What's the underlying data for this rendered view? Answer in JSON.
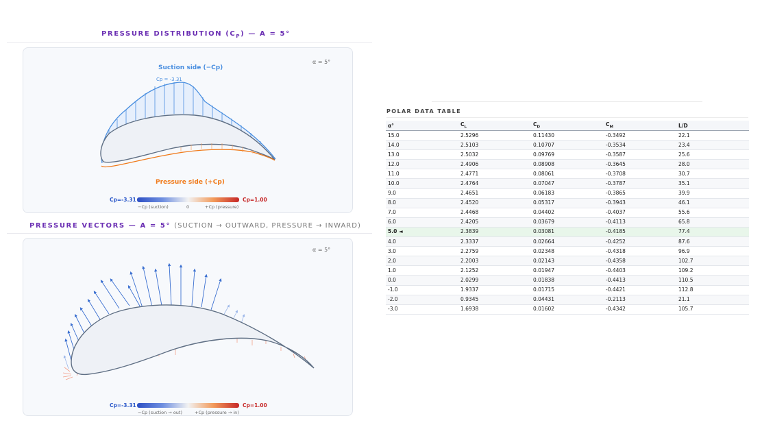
{
  "cp_section": {
    "title": "PRESSURE DISTRIBUTION (C",
    "title_sub": "P",
    "title_end": ") — A = 5°",
    "alpha_tag": "α = 5°",
    "suction_label": "Suction side (−Cp)",
    "pressure_label": "Pressure side (+Cp)",
    "cp_min_label": "Cp = -3.31",
    "colorbar": {
      "left": "Cp=-3.31",
      "right": "Cp=1.00",
      "tick_left": "−Cp (suction)",
      "tick_mid": "0",
      "tick_right": "+Cp (pressure)"
    }
  },
  "vector_section": {
    "title": "PRESSURE VECTORS — A = 5°",
    "subtitle": "(SUCTION → OUTWARD, PRESSURE → INWARD)",
    "alpha_tag": "α = 5°",
    "colorbar": {
      "left": "Cp=-3.31",
      "right": "Cp=1.00",
      "tick_left": "−Cp (suction → out)",
      "tick_right": "+Cp (pressure → in)"
    }
  },
  "colors": {
    "accent": "#6b2fb3",
    "suction": "#4a8fe0",
    "pressure": "#f07a1a",
    "highlight_row": "#e8f6ea"
  },
  "polar_table": {
    "title": "POLAR DATA TABLE",
    "headers": [
      {
        "main": "α°",
        "sub": ""
      },
      {
        "main": "C",
        "sub": "L"
      },
      {
        "main": "C",
        "sub": "D"
      },
      {
        "main": "C",
        "sub": "M"
      },
      {
        "main": "L/D",
        "sub": ""
      }
    ],
    "current_alpha": "5.0",
    "current_marker": "◄",
    "rows": [
      [
        "15.0",
        "2.5296",
        "0.11430",
        "-0.3492",
        "22.1"
      ],
      [
        "14.0",
        "2.5103",
        "0.10707",
        "-0.3534",
        "23.4"
      ],
      [
        "13.0",
        "2.5032",
        "0.09769",
        "-0.3587",
        "25.6"
      ],
      [
        "12.0",
        "2.4906",
        "0.08908",
        "-0.3645",
        "28.0"
      ],
      [
        "11.0",
        "2.4771",
        "0.08061",
        "-0.3708",
        "30.7"
      ],
      [
        "10.0",
        "2.4764",
        "0.07047",
        "-0.3787",
        "35.1"
      ],
      [
        "9.0",
        "2.4651",
        "0.06183",
        "-0.3865",
        "39.9"
      ],
      [
        "8.0",
        "2.4520",
        "0.05317",
        "-0.3943",
        "46.1"
      ],
      [
        "7.0",
        "2.4468",
        "0.04402",
        "-0.4037",
        "55.6"
      ],
      [
        "6.0",
        "2.4205",
        "0.03679",
        "-0.4113",
        "65.8"
      ],
      [
        "5.0",
        "2.3839",
        "0.03081",
        "-0.4185",
        "77.4"
      ],
      [
        "4.0",
        "2.3337",
        "0.02664",
        "-0.4252",
        "87.6"
      ],
      [
        "3.0",
        "2.2759",
        "0.02348",
        "-0.4318",
        "96.9"
      ],
      [
        "2.0",
        "2.2003",
        "0.02143",
        "-0.4358",
        "102.7"
      ],
      [
        "1.0",
        "2.1252",
        "0.01947",
        "-0.4403",
        "109.2"
      ],
      [
        "0.0",
        "2.0299",
        "0.01838",
        "-0.4413",
        "110.5"
      ],
      [
        "-1.0",
        "1.9337",
        "0.01715",
        "-0.4421",
        "112.8"
      ],
      [
        "-2.0",
        "0.9345",
        "0.04431",
        "-0.2113",
        "21.1"
      ],
      [
        "-3.0",
        "1.6938",
        "0.01602",
        "-0.4342",
        "105.7"
      ]
    ]
  }
}
